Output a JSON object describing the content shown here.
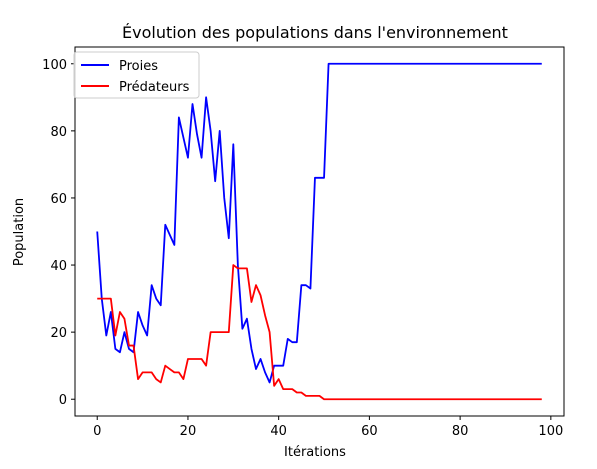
{
  "chart_data": {
    "type": "line",
    "title": "Évolution des populations dans l'environnement",
    "xlabel": "Itérations",
    "ylabel": "Population",
    "xlim": [
      -4.9,
      102.9
    ],
    "ylim": [
      -5,
      105
    ],
    "xticks": [
      0,
      20,
      40,
      60,
      80,
      100
    ],
    "yticks": [
      0,
      20,
      40,
      60,
      80,
      100
    ],
    "grid": false,
    "legend_position": "upper-left",
    "x": [
      0,
      1,
      2,
      3,
      4,
      5,
      6,
      7,
      8,
      9,
      10,
      11,
      12,
      13,
      14,
      15,
      16,
      17,
      18,
      19,
      20,
      21,
      22,
      23,
      24,
      25,
      26,
      27,
      28,
      29,
      30,
      31,
      32,
      33,
      34,
      35,
      36,
      37,
      38,
      39,
      40,
      41,
      42,
      43,
      44,
      45,
      46,
      47,
      48,
      49,
      50,
      51,
      52,
      53,
      54,
      55,
      56,
      57,
      58,
      59,
      60,
      61,
      62,
      63,
      64,
      65,
      66,
      67,
      68,
      69,
      70,
      71,
      72,
      73,
      74,
      75,
      76,
      77,
      78,
      79,
      80,
      81,
      82,
      83,
      84,
      85,
      86,
      87,
      88,
      89,
      90,
      91,
      92,
      93,
      94,
      95,
      96,
      97,
      98
    ],
    "series": [
      {
        "name": "Proies",
        "color": "#0000ff",
        "values": [
          50,
          30,
          19,
          26,
          15,
          14,
          20,
          15,
          14,
          26,
          22,
          19,
          34,
          30,
          28,
          52,
          49,
          46,
          84,
          78,
          72,
          88,
          79,
          72,
          90,
          80,
          65,
          80,
          60,
          48,
          76,
          40,
          21,
          24,
          15,
          9,
          12,
          8,
          5,
          10,
          10,
          10,
          18,
          17,
          17,
          34,
          34,
          33,
          66,
          66,
          66,
          100,
          100,
          100,
          100,
          100,
          100,
          100,
          100,
          100,
          100,
          100,
          100,
          100,
          100,
          100,
          100,
          100,
          100,
          100,
          100,
          100,
          100,
          100,
          100,
          100,
          100,
          100,
          100,
          100,
          100,
          100,
          100,
          100,
          100,
          100,
          100,
          100,
          100,
          100,
          100,
          100,
          100,
          100,
          100,
          100,
          100,
          100,
          100
        ]
      },
      {
        "name": "Prédateurs",
        "color": "#ff0000",
        "values": [
          30,
          30,
          30,
          30,
          19,
          26,
          24,
          16,
          16,
          6,
          8,
          8,
          8,
          6,
          5,
          10,
          9,
          8,
          8,
          6,
          12,
          12,
          12,
          12,
          10,
          20,
          20,
          20,
          20,
          20,
          40,
          39,
          39,
          39,
          29,
          34,
          31,
          25,
          20,
          4,
          6,
          3,
          3,
          3,
          2,
          2,
          1,
          1,
          1,
          1,
          0,
          0,
          0,
          0,
          0,
          0,
          0,
          0,
          0,
          0,
          0,
          0,
          0,
          0,
          0,
          0,
          0,
          0,
          0,
          0,
          0,
          0,
          0,
          0,
          0,
          0,
          0,
          0,
          0,
          0,
          0,
          0,
          0,
          0,
          0,
          0,
          0,
          0,
          0,
          0,
          0,
          0,
          0,
          0,
          0,
          0,
          0,
          0,
          0
        ]
      }
    ]
  }
}
